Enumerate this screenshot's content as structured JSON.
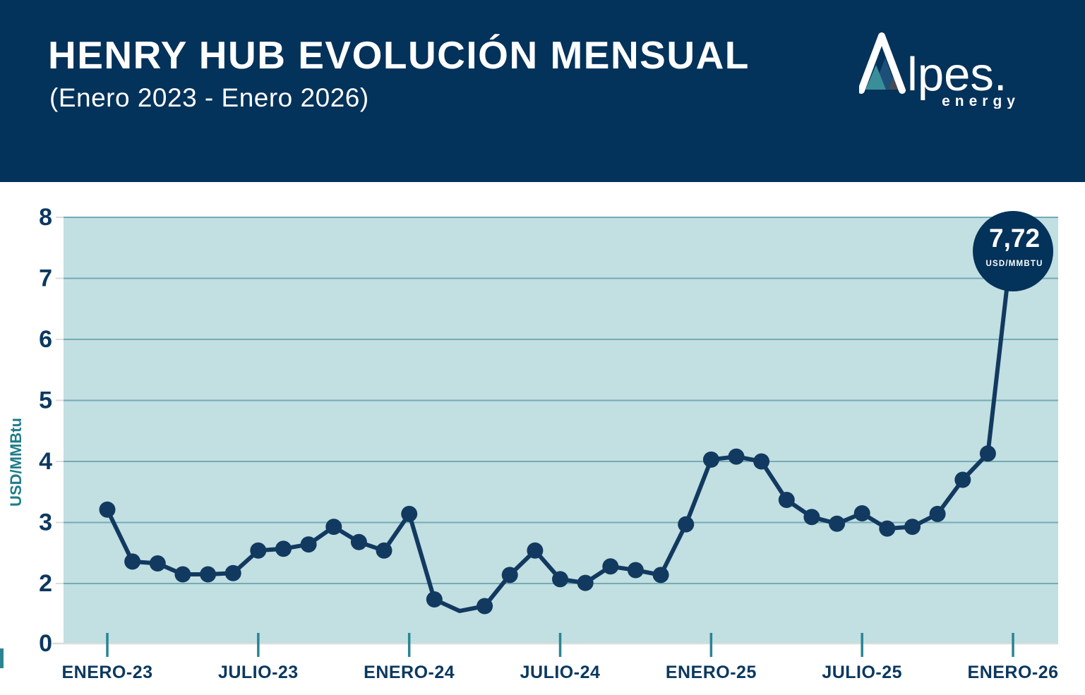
{
  "header": {
    "title": "HENRY HUB EVOLUCIÓN MENSUAL",
    "subtitle": "(Enero 2023 - Enero 2026)"
  },
  "brand": {
    "name_rest": "lpes.",
    "tagline": "energy"
  },
  "colors": {
    "header_navy": "#03325a",
    "line_navy": "#123a60",
    "label_navy": "#0b3860",
    "plot_bg": "#c2dfe1",
    "gridline_teal": "#74abb6",
    "tick_teal": "#2b8492",
    "axis_gray": "#d9dddd",
    "axis_title_teal": "#1f7c8b",
    "callout_navy": "#03325a",
    "white": "#ffffff",
    "logo_mountain_teal": "#3a8e98",
    "logo_mountain_blue": "#1d5078",
    "logo_mountain_dark": "#474c52"
  },
  "chart_data": {
    "type": "line",
    "title": "HENRY HUB EVOLUCIÓN MENSUAL (Enero 2023 - Enero 2026)",
    "ylabel": "USD/MMBtu",
    "frequency": "monthly",
    "start_month": "Enero 2023",
    "end_month": "Enero 2026",
    "ylim": [
      0,
      8
    ],
    "y_tick_labels": [
      "8",
      "7",
      "6",
      "5",
      "4",
      "3",
      "2",
      "0"
    ],
    "y_gridline_values": [
      2,
      3,
      4,
      5,
      6,
      7,
      8
    ],
    "grid": "horizontal",
    "legend": "none",
    "x_tick_labels": [
      {
        "index": 0,
        "label": "ENERO-23"
      },
      {
        "index": 6,
        "label": "JULIO-23"
      },
      {
        "index": 12,
        "label": "ENERO-24"
      },
      {
        "index": 18,
        "label": "JULIO-24"
      },
      {
        "index": 24,
        "label": "ENERO-25"
      },
      {
        "index": 30,
        "label": "JULIO-25"
      },
      {
        "index": 36,
        "label": "ENERO-26"
      }
    ],
    "series": [
      {
        "name": "Henry Hub",
        "values": [
          3.21,
          2.36,
          2.33,
          2.15,
          2.15,
          2.17,
          2.54,
          2.57,
          2.64,
          2.93,
          2.68,
          2.54,
          3.14,
          1.74,
          1.55,
          1.63,
          2.14,
          2.54,
          2.07,
          2.01,
          2.28,
          2.22,
          2.14,
          2.97,
          4.03,
          4.08,
          4.0,
          3.37,
          3.09,
          2.98,
          3.15,
          2.9,
          2.93,
          3.14,
          3.7,
          4.13,
          7.72
        ]
      }
    ],
    "marker_hidden_indices": [
      14
    ],
    "annotation": {
      "text": "7,72",
      "unit": "USD/MMBTU",
      "point_index": 36
    }
  }
}
